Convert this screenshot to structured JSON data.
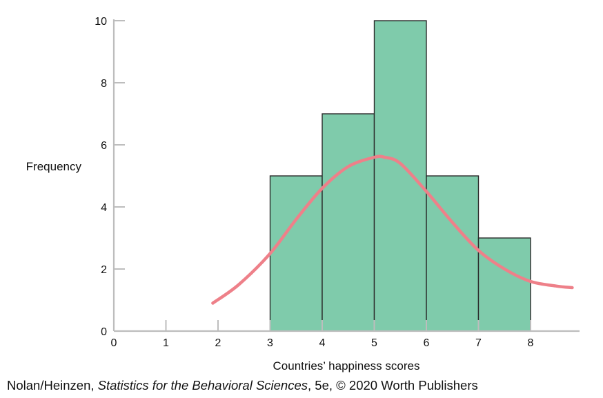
{
  "chart_data": {
    "type": "bar",
    "subtype": "histogram",
    "xlabel": "Countries’ happiness scores",
    "ylabel": "Frequency",
    "xlim": [
      0,
      8.9
    ],
    "ylim": [
      0,
      10.5
    ],
    "x_ticks": [
      0,
      1,
      2,
      3,
      4,
      5,
      6,
      7,
      8
    ],
    "y_ticks": [
      0,
      2,
      4,
      6,
      8,
      10
    ],
    "bins": [
      {
        "start": 3,
        "end": 4,
        "value": 5
      },
      {
        "start": 4,
        "end": 5,
        "value": 7
      },
      {
        "start": 5,
        "end": 6,
        "value": 10
      },
      {
        "start": 6,
        "end": 7,
        "value": 5
      },
      {
        "start": 7,
        "end": 8,
        "value": 3
      }
    ],
    "curve": {
      "x": [
        1.9,
        2.4,
        3.0,
        3.5,
        4.0,
        4.5,
        5.0,
        5.2,
        5.5,
        6.0,
        6.5,
        7.0,
        7.5,
        8.0,
        8.5,
        8.8
      ],
      "y": [
        0.9,
        1.5,
        2.5,
        3.6,
        4.6,
        5.3,
        5.6,
        5.6,
        5.4,
        4.5,
        3.5,
        2.6,
        2.0,
        1.6,
        1.45,
        1.4
      ]
    },
    "bar_color": "#7fcbab",
    "bar_edge_color": "#2a2a2a",
    "curve_color": "#ee8089",
    "grid": false
  },
  "source": {
    "authors": "Nolan/Heinzen,",
    "book_title": "Statistics for the Behavioral Sciences",
    "edition_publisher": ", 5e, © 2020 Worth Publishers"
  }
}
